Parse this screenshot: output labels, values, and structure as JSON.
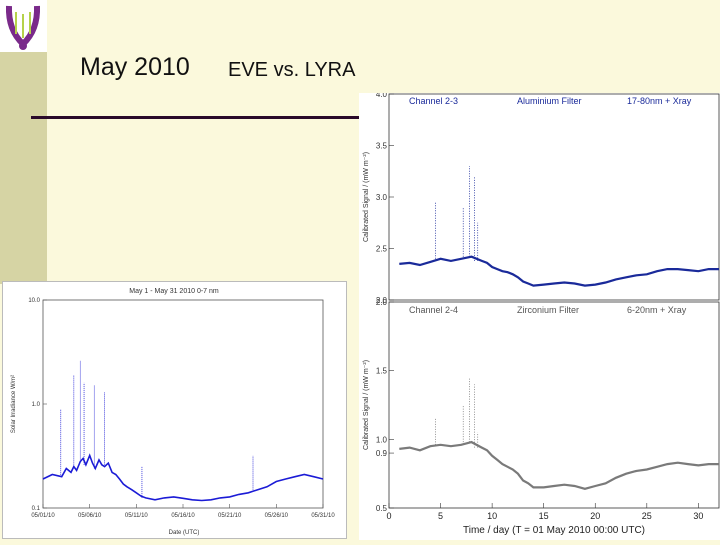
{
  "slide": {
    "title": "May 2010",
    "subtitle": "EVE vs. LYRA"
  },
  "colors": {
    "background": "#fbf9dc",
    "sidebar": "#d6d4a4",
    "rule": "#2a0a2a",
    "eve_series": "#1b1bd6",
    "lyra_ch3": "#1a2a9a",
    "lyra_ch4": "#7a7a7a",
    "logo_purple": "#7a2a8a"
  },
  "chart_data": [
    {
      "type": "line",
      "title": "May 1 - May 31 2010 0-7 nm",
      "xlabel": "Date (UTC)",
      "ylabel": "Solar Irradiance W/m²",
      "x_ticks": [
        "05/01/10",
        "05/06/10",
        "05/11/10",
        "05/16/10",
        "05/21/10",
        "05/26/10",
        "05/31/10"
      ],
      "y_ticks": [
        "0.1",
        "1.0",
        "10.0"
      ],
      "y_scale": "log",
      "ylim": [
        0.1,
        10.0
      ],
      "series": [
        {
          "x": [
            1,
            2,
            3,
            3.5,
            4,
            4.3,
            4.6,
            5,
            5.3,
            5.6,
            6,
            6.3,
            6.6,
            7,
            7.3,
            7.6,
            8,
            8.4,
            8.8,
            9.2,
            9.6,
            10,
            10.5,
            11,
            11.5,
            12,
            13,
            14,
            15,
            16,
            17,
            18,
            19,
            20,
            21,
            22,
            23,
            24,
            25,
            26,
            27,
            28,
            29,
            30,
            31
          ],
          "y": [
            0.19,
            0.21,
            0.2,
            0.24,
            0.22,
            0.25,
            0.23,
            0.28,
            0.3,
            0.26,
            0.32,
            0.27,
            0.24,
            0.29,
            0.26,
            0.25,
            0.27,
            0.22,
            0.21,
            0.19,
            0.17,
            0.16,
            0.15,
            0.14,
            0.13,
            0.125,
            0.12,
            0.125,
            0.128,
            0.124,
            0.12,
            0.118,
            0.12,
            0.125,
            0.128,
            0.135,
            0.14,
            0.15,
            0.16,
            0.18,
            0.19,
            0.2,
            0.21,
            0.2,
            0.19
          ]
        }
      ],
      "spikes": [
        {
          "x": 2.9,
          "y": 0.9
        },
        {
          "x": 4.3,
          "y": 1.9
        },
        {
          "x": 5.0,
          "y": 2.6
        },
        {
          "x": 5.4,
          "y": 1.6
        },
        {
          "x": 6.5,
          "y": 1.5
        },
        {
          "x": 7.6,
          "y": 1.3
        },
        {
          "x": 11.6,
          "y": 0.25
        },
        {
          "x": 23.5,
          "y": 0.32
        }
      ]
    },
    {
      "type": "line",
      "title": "Channel 2-3",
      "filter": "Aluminium Filter",
      "band": "17-80nm + Xray",
      "ylabel": "Calibrated Signal / (mW m⁻²)",
      "y_ticks": [
        "2.0",
        "2.5",
        "3.0",
        "3.5",
        "4.0"
      ],
      "ylim": [
        2.0,
        4.0
      ],
      "xlim": [
        0,
        32
      ],
      "series": [
        {
          "x": [
            1,
            2,
            3,
            4,
            5,
            6,
            7,
            8,
            9,
            9.5,
            10,
            10.5,
            11,
            11.5,
            12,
            12.5,
            13,
            13.5,
            14,
            15,
            16,
            17,
            18,
            19,
            20,
            21,
            22,
            23,
            24,
            25,
            26,
            27,
            28,
            29,
            30,
            31,
            32
          ],
          "y": [
            2.35,
            2.36,
            2.34,
            2.37,
            2.4,
            2.38,
            2.4,
            2.42,
            2.38,
            2.36,
            2.32,
            2.3,
            2.28,
            2.27,
            2.25,
            2.22,
            2.18,
            2.16,
            2.14,
            2.15,
            2.16,
            2.17,
            2.16,
            2.14,
            2.15,
            2.17,
            2.2,
            2.22,
            2.24,
            2.25,
            2.28,
            2.3,
            2.3,
            2.29,
            2.28,
            2.3,
            2.3
          ]
        }
      ],
      "spikes": [
        {
          "x": 4.5,
          "y": 2.95
        },
        {
          "x": 7.2,
          "y": 2.9
        },
        {
          "x": 7.8,
          "y": 3.3
        },
        {
          "x": 8.3,
          "y": 3.2
        },
        {
          "x": 8.6,
          "y": 2.75
        }
      ]
    },
    {
      "type": "line",
      "title": "Channel 2-4",
      "filter": "Zirconium Filter",
      "band": "6-20nm + Xray",
      "ylabel": "Calibrated Signal / (mW m⁻²)",
      "xlabel": "Time / day (T = 01 May 2010 00:00 UTC)",
      "x_ticks": [
        "0",
        "5",
        "10",
        "15",
        "20",
        "25",
        "30"
      ],
      "y_ticks": [
        "0.5",
        "0.9",
        "1.0",
        "1.5",
        "2.0"
      ],
      "ylim": [
        0.5,
        2.0
      ],
      "xlim": [
        0,
        32
      ],
      "series": [
        {
          "x": [
            1,
            2,
            3,
            4,
            5,
            6,
            7,
            8,
            9,
            9.5,
            10,
            10.5,
            11,
            11.5,
            12,
            12.5,
            13,
            13.5,
            14,
            15,
            16,
            17,
            18,
            19,
            20,
            21,
            22,
            23,
            24,
            25,
            26,
            27,
            28,
            29,
            30,
            31,
            32
          ],
          "y": [
            0.93,
            0.94,
            0.92,
            0.95,
            0.96,
            0.95,
            0.96,
            0.98,
            0.94,
            0.92,
            0.88,
            0.85,
            0.82,
            0.8,
            0.78,
            0.75,
            0.7,
            0.68,
            0.65,
            0.65,
            0.66,
            0.67,
            0.66,
            0.64,
            0.66,
            0.68,
            0.72,
            0.75,
            0.77,
            0.78,
            0.8,
            0.82,
            0.83,
            0.82,
            0.81,
            0.82,
            0.82
          ]
        }
      ],
      "spikes": [
        {
          "x": 4.5,
          "y": 1.15
        },
        {
          "x": 7.2,
          "y": 1.25
        },
        {
          "x": 7.8,
          "y": 1.45
        },
        {
          "x": 8.3,
          "y": 1.4
        },
        {
          "x": 8.6,
          "y": 1.05
        }
      ]
    }
  ]
}
